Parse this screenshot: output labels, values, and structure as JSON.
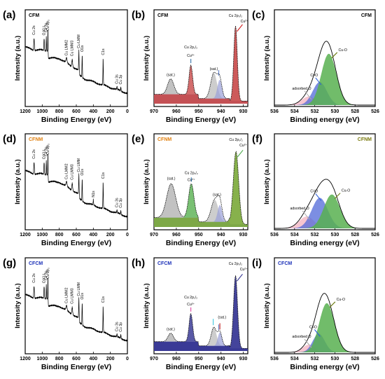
{
  "colors": {
    "cfm": "#000000",
    "cfnm": "#e08010",
    "cfcm": "#1a2fb8",
    "cfnm_c": "#7a7a10",
    "cu_peak_b": "#c84848",
    "cu_peak_h": "#303090",
    "cu_peak_e": "#7aa838",
    "sat": "#a8a8a8",
    "cu2plus": "#3070a8",
    "c_eq_o": "#5068d8",
    "cu_o": "#58b050",
    "ads_o": "#f0a0b0"
  },
  "chart_data": [
    {
      "id": "a",
      "panel_label": "(a)",
      "type": "line",
      "sample": "CFM",
      "xlabel": "Binding Energy (eV)",
      "ylabel": "Intensity (a.u.)",
      "xlim": [
        1200,
        0
      ],
      "xticks": [
        1200,
        1000,
        800,
        600,
        400,
        200,
        0
      ],
      "peak_labels": [
        "Cu 2s",
        "O KLL",
        "Cu 2p₁",
        "Cu 2p₃",
        "Cu LMM2",
        "Cu LMM3",
        "Cu LMM",
        "O1s",
        "C1s",
        "Cu 3s",
        "Cu 3p"
      ],
      "label_x": [
        1096,
        978,
        952,
        933,
        714,
        648,
        570,
        531,
        285,
        122,
        77
      ]
    },
    {
      "id": "b",
      "panel_label": "(b)",
      "type": "area",
      "sample": "CFM",
      "xlabel": "Binding Energy (eV)",
      "ylabel": "Intensity (a.u.)",
      "xlim": [
        970,
        928
      ],
      "xticks": [
        970,
        960,
        950,
        940,
        930
      ],
      "annotations": [
        "Cu 2p₁/₂",
        "Cu²⁺",
        "(sat.)",
        "(sat.)",
        "Cu 2p₃/₂",
        "Cu²⁺"
      ],
      "components": [
        {
          "center": 962.5,
          "height": 0.18,
          "width": 1.4
        },
        {
          "center": 953.5,
          "height": 0.34,
          "width": 0.8
        },
        {
          "center": 943.2,
          "height": 0.3,
          "width": 1.4
        },
        {
          "center": 940.6,
          "height": 0.22,
          "width": 1.0
        },
        {
          "center": 933.5,
          "height": 0.88,
          "width": 0.8
        }
      ]
    },
    {
      "id": "c",
      "panel_label": "(c)",
      "type": "area",
      "sample": "CFM",
      "xlabel": "Binding energy (eV)",
      "ylabel": "Intensity (a.u.)",
      "xlim": [
        536,
        526
      ],
      "xticks": [
        536,
        534,
        532,
        530,
        528,
        526
      ],
      "annotations": [
        "adsorbed O",
        "C=O",
        "Cu-O"
      ],
      "components": [
        {
          "center": 532.6,
          "height": 0.1,
          "width": 0.7
        },
        {
          "center": 531.5,
          "height": 0.27,
          "width": 0.7
        },
        {
          "center": 530.6,
          "height": 0.6,
          "width": 0.75
        }
      ]
    },
    {
      "id": "d",
      "panel_label": "(d)",
      "type": "line",
      "sample": "CFNM",
      "xlabel": "Binding Energy (eV)",
      "ylabel": "Intensity (a.u.)",
      "xlim": [
        1200,
        0
      ],
      "xticks": [
        1200,
        1000,
        800,
        600,
        400,
        200,
        0
      ],
      "peak_labels": [
        "Cu 2s",
        "O KLL",
        "Cu 2p₁",
        "Cu 2p₃",
        "Cu LMM2",
        "Cu LMM3",
        "Cu LMM",
        "O1s",
        "N1s",
        "C1s",
        "Cu 3s",
        "Cu 3p"
      ],
      "label_x": [
        1096,
        978,
        952,
        933,
        714,
        648,
        570,
        531,
        400,
        285,
        122,
        77
      ]
    },
    {
      "id": "e",
      "panel_label": "(e)",
      "type": "area",
      "sample": "CFNM",
      "xlabel": "Binding Energy (eV)",
      "ylabel": "Intensity (a.u.)",
      "xlim": [
        970,
        928
      ],
      "xticks": [
        970,
        960,
        950,
        940,
        930
      ],
      "annotations": [
        "(sat.)",
        "Cu 2p₁/₂",
        "Cu²⁺",
        "(sat.)",
        "Cu 2p₃/₂",
        "Cu²⁺"
      ],
      "components": [
        {
          "center": 962.3,
          "height": 0.4,
          "width": 2.0
        },
        {
          "center": 953.3,
          "height": 0.4,
          "width": 1.2
        },
        {
          "center": 942.8,
          "height": 0.26,
          "width": 1.6
        },
        {
          "center": 940.5,
          "height": 0.2,
          "width": 1.0
        },
        {
          "center": 933.3,
          "height": 0.86,
          "width": 1.2
        }
      ]
    },
    {
      "id": "f",
      "panel_label": "(f)",
      "type": "area",
      "sample": "CFNM",
      "xlabel": "Binding energy (eV)",
      "ylabel": "Intensity (a.u.)",
      "xlim": [
        536,
        526
      ],
      "xticks": [
        536,
        534,
        532,
        530,
        528,
        526
      ],
      "annotations": [
        "adsorbed O",
        "C=O",
        "Cu-O"
      ],
      "components": [
        {
          "center": 532.8,
          "height": 0.14,
          "width": 0.75
        },
        {
          "center": 531.5,
          "height": 0.36,
          "width": 0.8
        },
        {
          "center": 530.3,
          "height": 0.4,
          "width": 0.8
        }
      ]
    },
    {
      "id": "g",
      "panel_label": "(g)",
      "type": "line",
      "sample": "CFCM",
      "xlabel": "Binding Energy (eV)",
      "ylabel": "Intensity (a.u.)",
      "xlim": [
        1200,
        0
      ],
      "xticks": [
        1200,
        1000,
        800,
        600,
        400,
        200,
        0
      ],
      "peak_labels": [
        "Cu 2s",
        "O KLL",
        "Cu 2p₁",
        "Cu 2p₃",
        "Cu LMM2",
        "Cu LMM3",
        "Cu LMM",
        "O1s",
        "C1s",
        "Cu 3s",
        "Cu 3p"
      ],
      "label_x": [
        1096,
        978,
        952,
        933,
        714,
        648,
        570,
        531,
        285,
        122,
        77
      ]
    },
    {
      "id": "h",
      "panel_label": "(h)",
      "type": "area",
      "sample": "CFCM",
      "xlabel": "Binding Energy (eV)",
      "ylabel": "Intensity (a.u.)",
      "xlim": [
        970,
        928
      ],
      "xticks": [
        970,
        960,
        950,
        940,
        930
      ],
      "annotations": [
        "(sat.)",
        "Cu 2p₁/₂",
        "Cu²⁺",
        "(sat.)",
        "Cu 2p₃/₂",
        "Cu²⁺"
      ],
      "components": [
        {
          "center": 962.5,
          "height": 0.1,
          "width": 1.2
        },
        {
          "center": 953.5,
          "height": 0.33,
          "width": 0.8
        },
        {
          "center": 943.2,
          "height": 0.22,
          "width": 1.2
        },
        {
          "center": 940.5,
          "height": 0.16,
          "width": 0.9
        },
        {
          "center": 933.5,
          "height": 0.86,
          "width": 0.9
        }
      ]
    },
    {
      "id": "i",
      "panel_label": "(i)",
      "type": "area",
      "sample": "CFCM",
      "xlabel": "Binding energy (eV)",
      "ylabel": "Intensity (a.u.)",
      "xlim": [
        536,
        526
      ],
      "xticks": [
        536,
        534,
        532,
        530,
        528,
        526
      ],
      "annotations": [
        "adsorbed O",
        "C=O",
        "Cu-O"
      ],
      "components": [
        {
          "center": 532.6,
          "height": 0.09,
          "width": 0.6
        },
        {
          "center": 531.6,
          "height": 0.22,
          "width": 0.6
        },
        {
          "center": 530.8,
          "height": 0.58,
          "width": 0.75
        }
      ]
    }
  ]
}
